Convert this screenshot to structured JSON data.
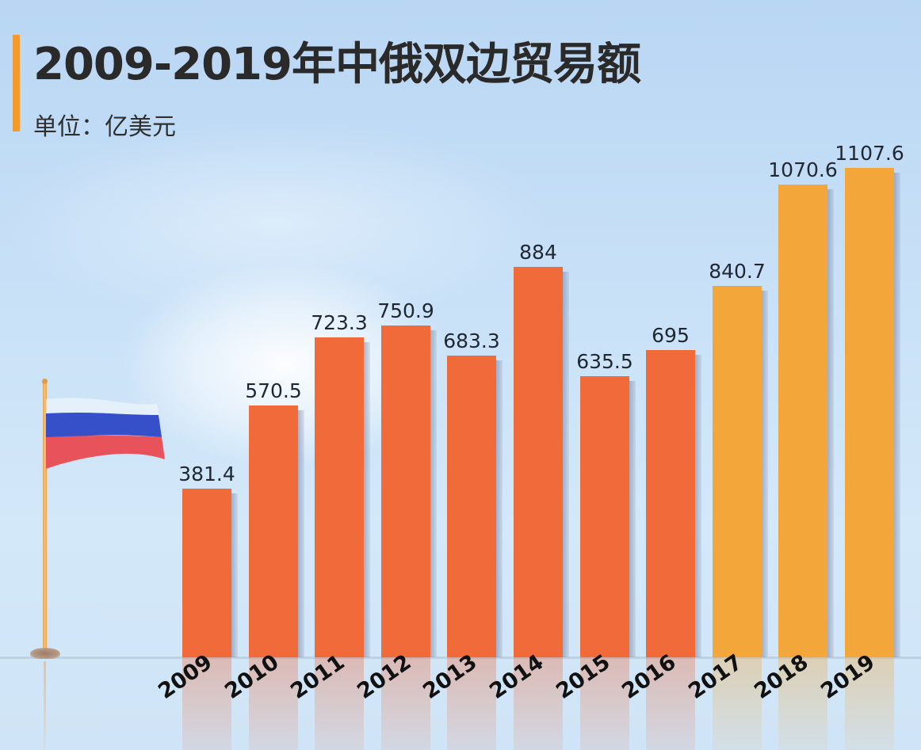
{
  "header": {
    "title": "2009-2019年中俄双边贸易额",
    "unit": "单位：亿美元"
  },
  "colors": {
    "accent": "#f39a2e",
    "bar_early": "#f06a3a",
    "bar_late": "#f3a73b",
    "background": "#c7e0f7",
    "flag_blue": "#3550c8",
    "flag_red": "#e8525a"
  },
  "decoration": {
    "flag": "russian-flag-icon"
  },
  "chart_data": {
    "type": "bar",
    "title": "2009-2019年中俄双边贸易额",
    "subtitle": "单位：亿美元",
    "xlabel": "",
    "ylabel": "亿美元",
    "categories": [
      "2009",
      "2010",
      "2011",
      "2012",
      "2013",
      "2014",
      "2015",
      "2016",
      "2017",
      "2018",
      "2019"
    ],
    "values": [
      381.4,
      570.5,
      723.3,
      750.9,
      683.3,
      884,
      635.5,
      695,
      840.7,
      1070.6,
      1107.6
    ],
    "labels": [
      "381.4",
      "570.5",
      "723.3",
      "750.9",
      "683.3",
      "884",
      "635.5",
      "695",
      "840.7",
      "1070.6",
      "1107.6"
    ],
    "highlight_from_index": 8,
    "ylim": [
      0,
      1150
    ],
    "grid": false,
    "legend": null
  }
}
